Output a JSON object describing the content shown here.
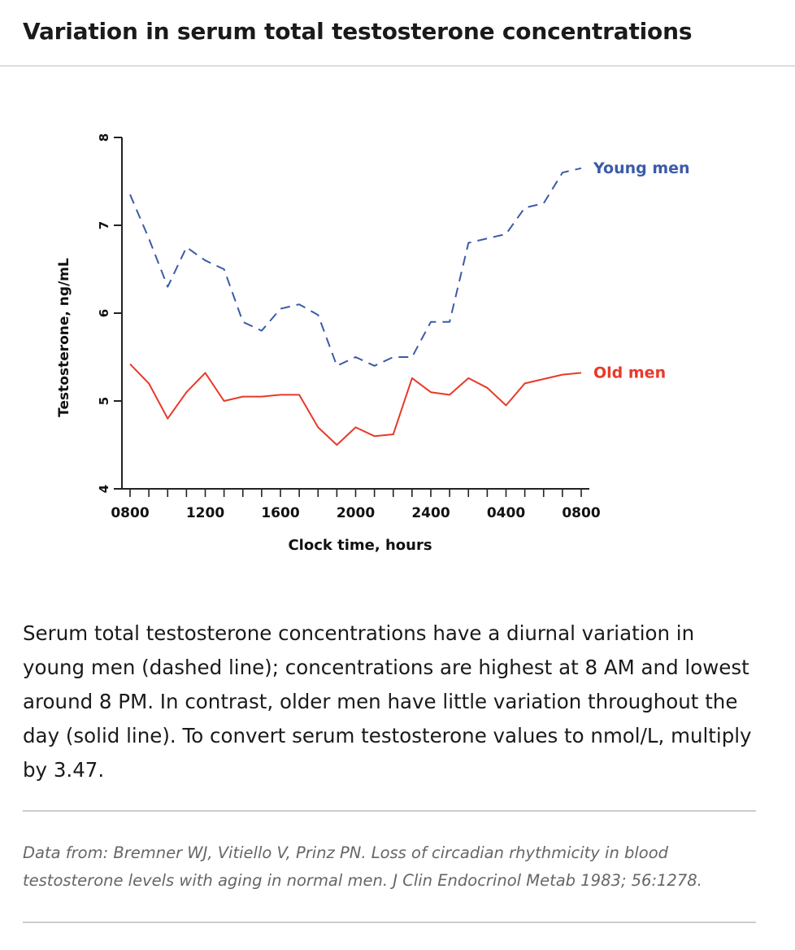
{
  "header": {
    "title": "Variation in serum total testosterone concentrations"
  },
  "chart_data": {
    "type": "line",
    "xlabel": "Clock time, hours",
    "ylabel": "Testosterone, ng/mL",
    "ylim": [
      4,
      8
    ],
    "yticks": [
      "4",
      "5",
      "6",
      "7",
      "8"
    ],
    "xlim": [
      8,
      32
    ],
    "xtick_labels": [
      {
        "x": 8,
        "label": "0800"
      },
      {
        "x": 12,
        "label": "1200"
      },
      {
        "x": 16,
        "label": "1600"
      },
      {
        "x": 20,
        "label": "2000"
      },
      {
        "x": 24,
        "label": "2400"
      },
      {
        "x": 28,
        "label": "0400"
      },
      {
        "x": 32,
        "label": "0800"
      }
    ],
    "grid": false,
    "legend": "inline labels at right end of each line",
    "series": [
      {
        "name": "Young men",
        "style": "dashed",
        "color": "#3b5ba9",
        "x": [
          8,
          9,
          10,
          11,
          12,
          13,
          14,
          15,
          16,
          17,
          18,
          19,
          20,
          21,
          22,
          23,
          24,
          25,
          26,
          27,
          28,
          29,
          30,
          31,
          32
        ],
        "y": [
          7.35,
          6.85,
          6.3,
          6.75,
          6.6,
          6.5,
          5.9,
          5.8,
          6.05,
          6.1,
          5.98,
          5.4,
          5.5,
          5.4,
          5.5,
          5.5,
          5.9,
          5.9,
          6.8,
          6.85,
          6.9,
          7.2,
          7.25,
          7.6,
          7.65
        ]
      },
      {
        "name": "Old men",
        "style": "solid",
        "color": "#e8392a",
        "x": [
          8,
          9,
          10,
          11,
          12,
          13,
          14,
          15,
          16,
          17,
          18,
          19,
          20,
          21,
          22,
          23,
          24,
          25,
          26,
          27,
          28,
          29,
          30,
          31,
          32
        ],
        "y": [
          5.42,
          5.2,
          4.8,
          5.1,
          5.32,
          5.0,
          5.05,
          5.05,
          5.07,
          5.07,
          4.7,
          4.5,
          4.7,
          4.6,
          4.62,
          5.26,
          5.1,
          5.07,
          5.26,
          5.15,
          4.95,
          5.2,
          5.25,
          5.3,
          5.32
        ]
      }
    ]
  },
  "caption": {
    "text": "Serum total testosterone concentrations have a diurnal variation in young men (dashed line); concentrations are highest at 8 AM and lowest around 8 PM. In contrast, older men have little variation throughout the day (solid line). To convert serum testosterone values to nmol/L, multiply by 3.47."
  },
  "source": {
    "text": "Data from: Bremner WJ, Vitiello V, Prinz PN. Loss of circadian rhythmicity in blood testosterone levels with aging in normal men. J Clin Endocrinol Metab 1983; 56:1278."
  }
}
